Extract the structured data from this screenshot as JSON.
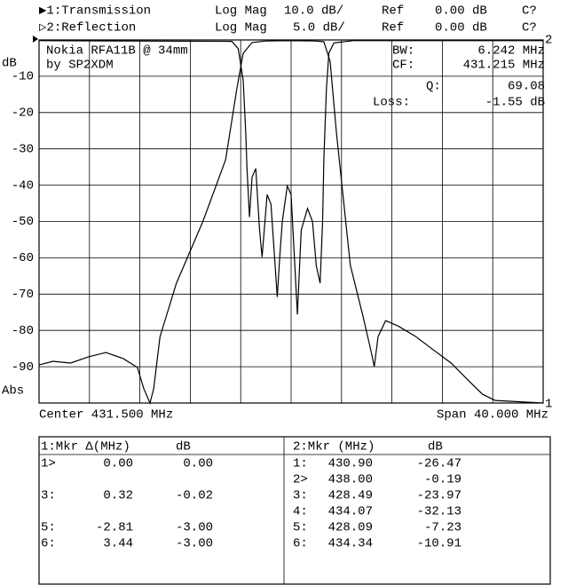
{
  "chart_data": {
    "type": "line",
    "channels": [
      {
        "name": "▶1:Transmission",
        "format": "Log Mag",
        "scale": "10.0 dB/",
        "ref": "Ref",
        "ref_value": "0.00 dB",
        "cal": "C?"
      },
      {
        "name": "▷2:Reflection",
        "format": "Log Mag",
        "scale": "5.0 dB/",
        "ref": "Ref",
        "ref_value": "0.00 dB",
        "cal": "C?"
      }
    ],
    "annotations": {
      "line1": "Nokia RFA11B @ 34mm",
      "line2": "by SP2XDM"
    },
    "stats": [
      {
        "label": "BW:",
        "value": "6.242 MHz"
      },
      {
        "label": "CF:",
        "value": "431.215 MHz"
      },
      {
        "label": "Q:",
        "value": "69.08"
      },
      {
        "label": "Loss:",
        "value": "-1.55 dB"
      }
    ],
    "y_label": "dB",
    "y_format": "Abs",
    "center": "Center 431.500 MHz",
    "span": "Span 40.000 MHz",
    "ref_labels": {
      "ch1": "1",
      "ch2": "2"
    },
    "xlim": [
      411.5,
      451.5
    ],
    "ylim": [
      -100,
      0
    ],
    "yticks": [
      -90,
      -80,
      -70,
      -60,
      -50,
      -40,
      -30,
      -20,
      -10
    ],
    "y2lim": [
      -50,
      0
    ],
    "grid": true,
    "series": [
      {
        "name": "Transmission",
        "color": "#000000",
        "x": [
          411.5,
          412.6,
          414.0,
          415.4,
          416.8,
          418.2,
          419.3,
          419.8,
          420.3,
          420.6,
          421.1,
          422.4,
          424.5,
          426.3,
          427.2,
          427.7,
          428.4,
          429.5,
          431.5,
          433.4,
          434.1,
          434.6,
          435.1,
          436.2,
          437.2,
          437.9,
          438.1,
          438.4,
          439.0,
          440.0,
          441.4,
          442.8,
          444.2,
          445.6,
          446.7,
          447.7,
          451.5
        ],
        "values": [
          -89.5,
          -88.5,
          -89.0,
          -87.3,
          -86.1,
          -87.8,
          -90.2,
          -96,
          -100,
          -96,
          -81.7,
          -67,
          -50,
          -33,
          -13.4,
          -3.7,
          -0.7,
          -0.3,
          -0.2,
          -0.3,
          -0.5,
          -6,
          -25.6,
          -62,
          -76,
          -86.6,
          -90,
          -81.7,
          -77.3,
          -78.8,
          -81.7,
          -85.4,
          -89,
          -93.9,
          -97.6,
          -99.3,
          -100
        ]
      },
      {
        "name": "Reflection",
        "color": "#000000",
        "axis": "y2",
        "x": [
          411.5,
          426.8,
          427.3,
          427.7,
          427.9,
          428.0,
          428.2,
          428.4,
          428.7,
          429.0,
          429.2,
          429.6,
          429.9,
          430.4,
          430.6,
          430.8,
          431.2,
          431.5,
          432.0,
          432.3,
          432.8,
          433.2,
          433.5,
          433.8,
          434.0,
          434.1,
          434.3,
          434.5,
          434.9,
          436.4,
          451.5
        ],
        "values": [
          -0.1,
          -0.2,
          -1.2,
          -5.5,
          -12.8,
          -17.7,
          -24.4,
          -18.9,
          -17.7,
          -26.2,
          -29.9,
          -21.3,
          -22.6,
          -35.4,
          -29.9,
          -25,
          -20.1,
          -21.3,
          -37.8,
          -26.2,
          -23.2,
          -25,
          -31.1,
          -33.5,
          -25,
          -16.5,
          -6.7,
          -1.8,
          -0.4,
          -0.1,
          -0.1
        ]
      }
    ]
  },
  "marker_tables": [
    {
      "header": [
        "1:Mkr Δ(MHz)",
        "dB"
      ],
      "rows": [
        [
          "1>",
          "0.00",
          "0.00"
        ],
        [
          "3:",
          "0.32",
          "-0.02"
        ],
        [
          "5:",
          "-2.81",
          "-3.00"
        ],
        [
          "6:",
          "3.44",
          "-3.00"
        ]
      ]
    },
    {
      "header": [
        "2:Mkr (MHz)",
        "dB"
      ],
      "rows": [
        [
          "1:",
          "430.90",
          "-26.47"
        ],
        [
          "2>",
          "438.00",
          "-0.19"
        ],
        [
          "3:",
          "428.49",
          "-23.97"
        ],
        [
          "4:",
          "434.07",
          "-32.13"
        ],
        [
          "5:",
          "428.09",
          "-7.23"
        ],
        [
          "6:",
          "434.34",
          "-10.91"
        ]
      ]
    }
  ]
}
